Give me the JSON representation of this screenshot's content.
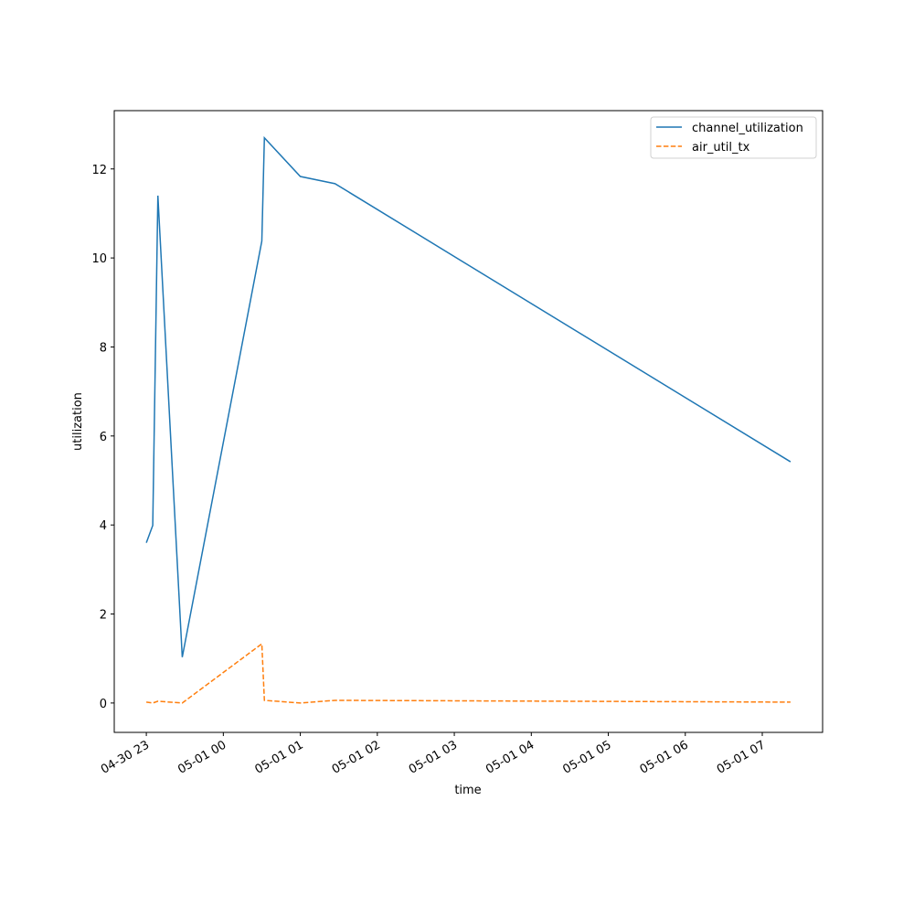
{
  "chart_data": {
    "type": "line",
    "x_label": "time",
    "y_label": "utilization",
    "x": [
      "04-30 23:00",
      "04-30 23:05",
      "04-30 23:09",
      "04-30 23:28",
      "05-01 00:30",
      "05-01 00:32",
      "05-01 01:00",
      "05-01 01:27",
      "05-01 07:22"
    ],
    "series": [
      {
        "name": "channel_utilization",
        "color": "#1f77b4",
        "linestyle": "solid",
        "values": [
          3.6,
          3.99,
          11.4,
          1.03,
          10.38,
          12.7,
          11.83,
          11.67,
          5.42
        ]
      },
      {
        "name": "air_util_tx",
        "color": "#ff7f0e",
        "linestyle": "dashed",
        "values": [
          0.02,
          0.0,
          0.04,
          0.0,
          1.33,
          0.06,
          0.0,
          0.06,
          0.02
        ]
      }
    ],
    "xlim": [
      "04-30 22:35",
      "05-01 07:47"
    ],
    "xticks": [
      {
        "value": "04-30 23:00",
        "label": "04-30 23"
      },
      {
        "value": "05-01 00:00",
        "label": "05-01 00"
      },
      {
        "value": "05-01 01:00",
        "label": "05-01 01"
      },
      {
        "value": "05-01 02:00",
        "label": "05-01 02"
      },
      {
        "value": "05-01 03:00",
        "label": "05-01 03"
      },
      {
        "value": "05-01 04:00",
        "label": "05-01 04"
      },
      {
        "value": "05-01 05:00",
        "label": "05-01 05"
      },
      {
        "value": "05-01 06:00",
        "label": "05-01 06"
      },
      {
        "value": "05-01 07:00",
        "label": "05-01 07"
      }
    ],
    "ylim": [
      -0.66,
      13.31
    ],
    "yticks": [
      0,
      2,
      4,
      6,
      8,
      10,
      12
    ],
    "legend": "upper right",
    "grid": false
  }
}
